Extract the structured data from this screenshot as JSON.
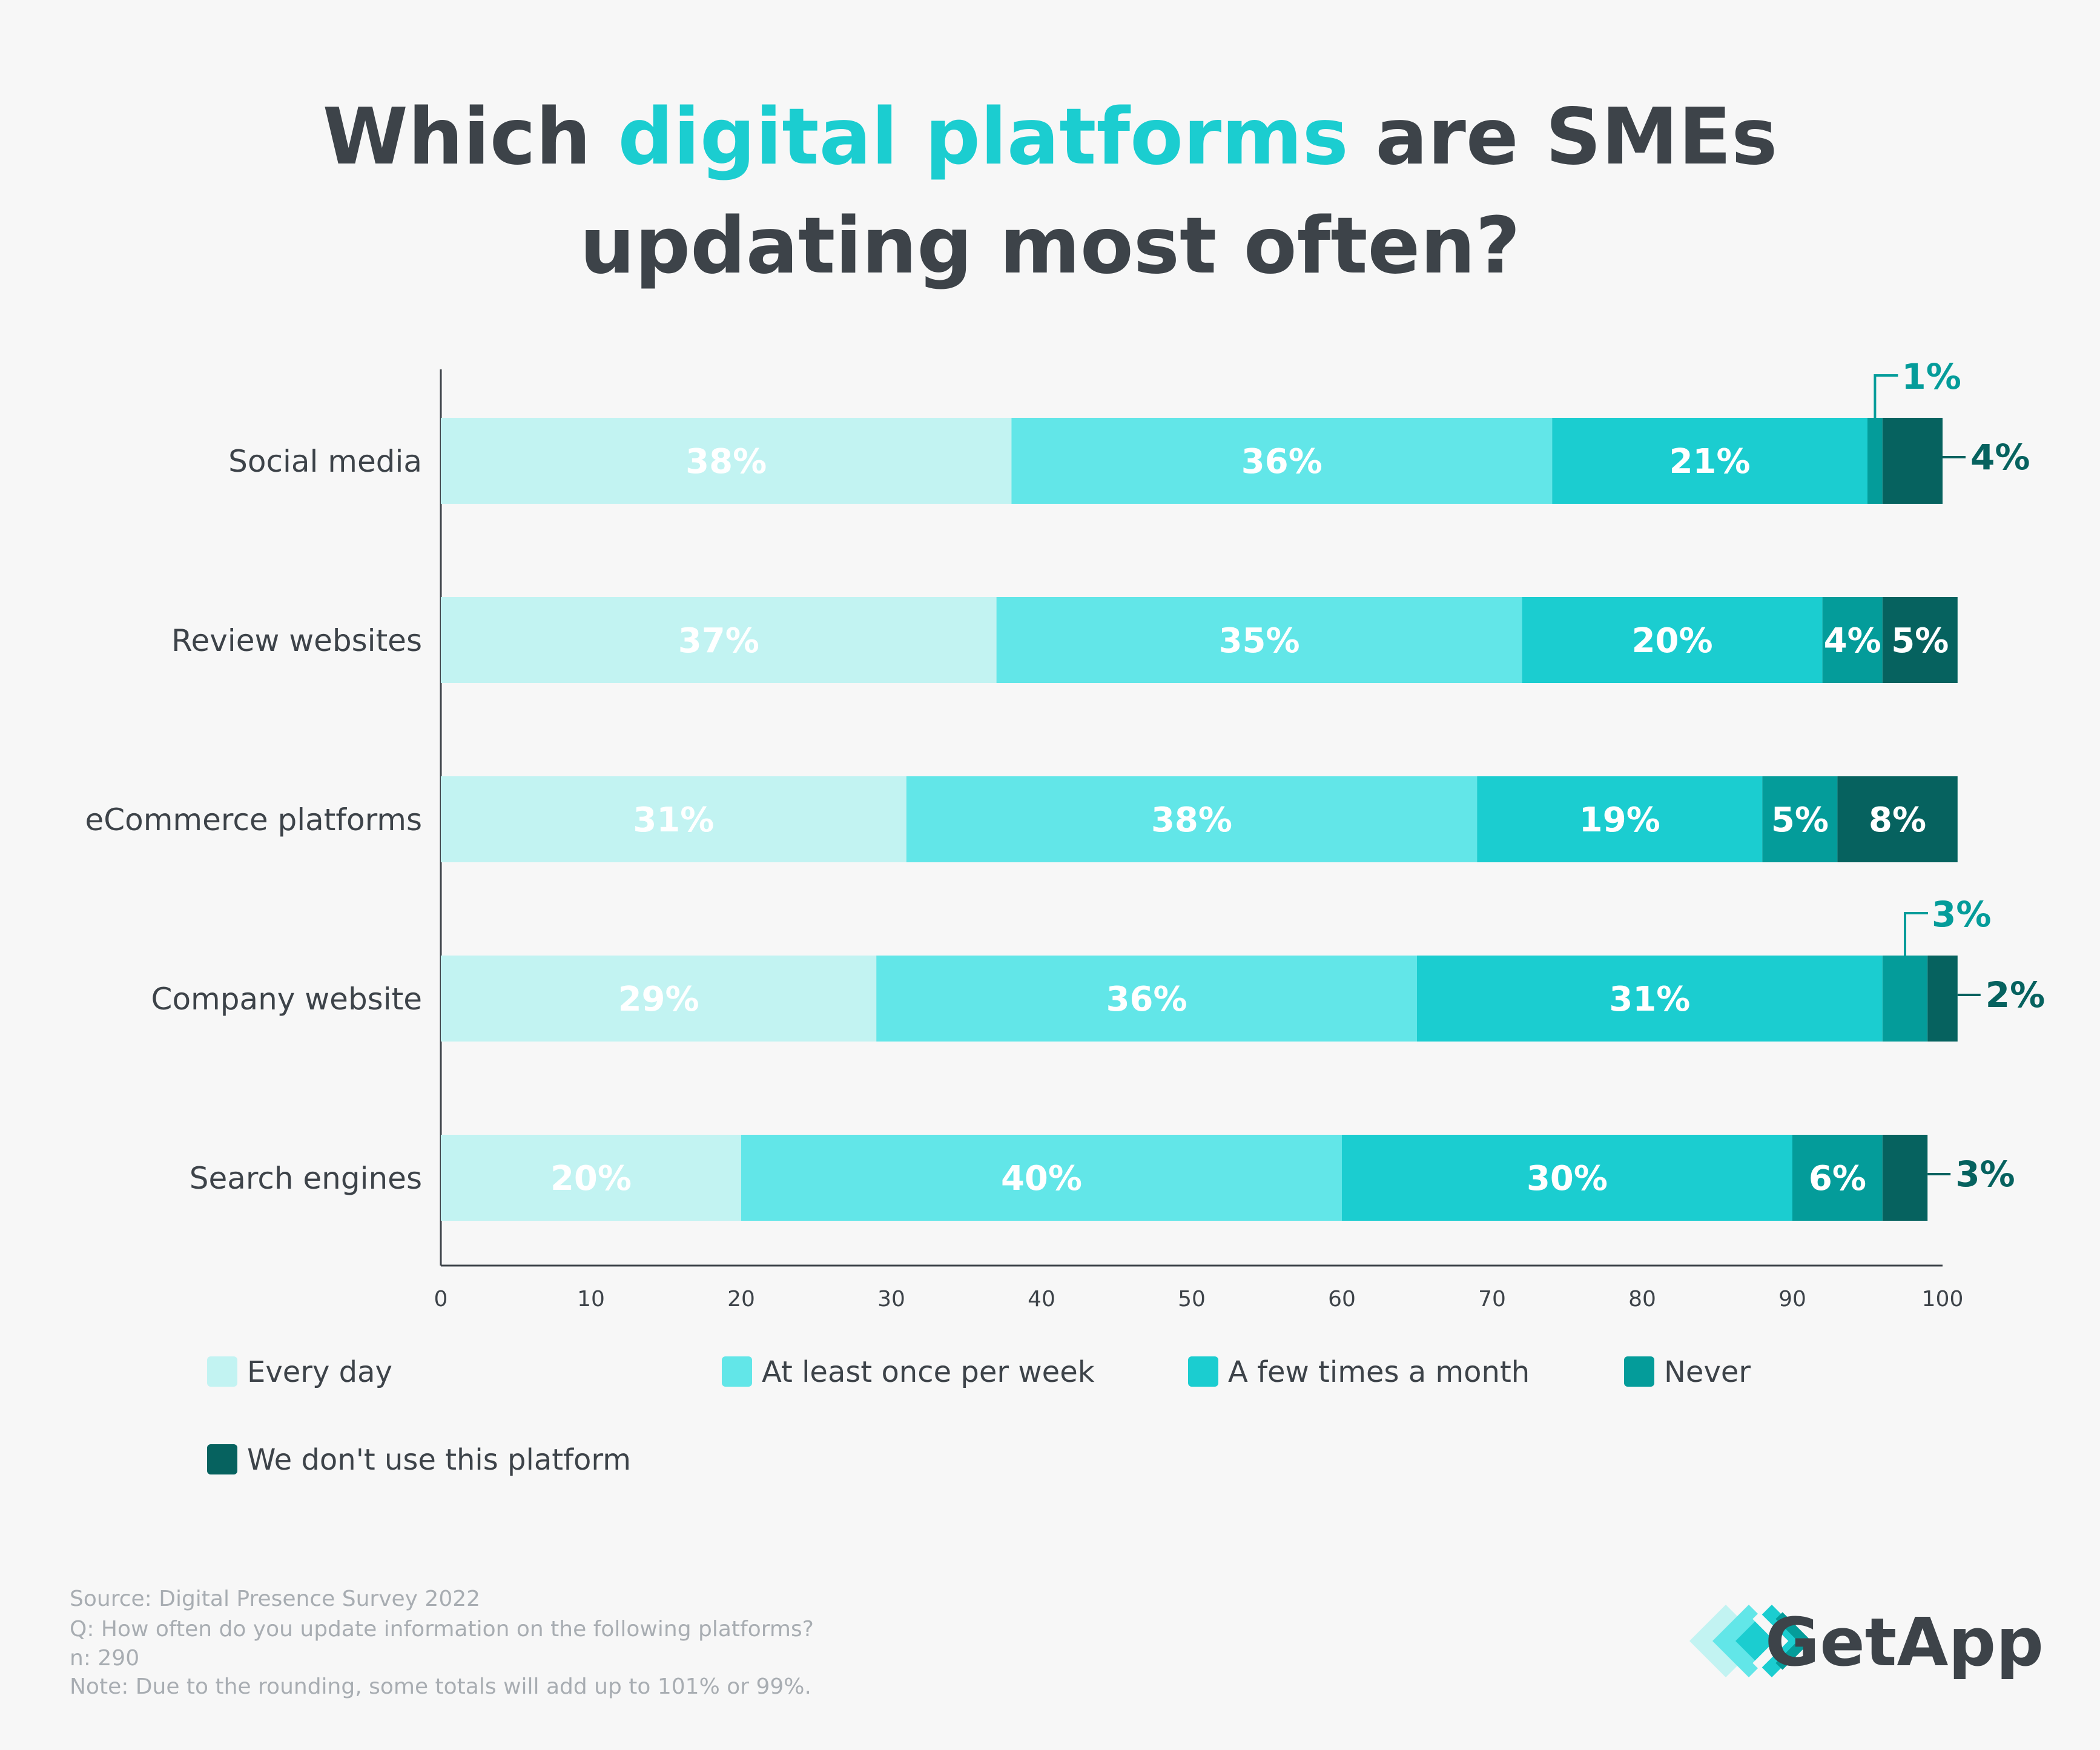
{
  "title": {
    "line1_prefix": "Which ",
    "line1_accent": "digital platforms",
    "line1_suffix": " are SMEs",
    "line2": "updating most often?"
  },
  "colors": {
    "text": "#3d4349",
    "accent": "#1bcdd0",
    "series": [
      "#c2f3f2",
      "#62e6e8",
      "#1bcdd0",
      "#049c9a",
      "#06625f"
    ]
  },
  "chart_data": {
    "type": "bar",
    "orientation": "horizontal",
    "stacked": true,
    "categories": [
      "Social media",
      "Review websites",
      "eCommerce platforms",
      "Company website",
      "Search engines"
    ],
    "series": [
      {
        "name": "Every day",
        "values": [
          38,
          37,
          31,
          29,
          20
        ]
      },
      {
        "name": "At least once per week",
        "values": [
          36,
          35,
          38,
          36,
          40
        ]
      },
      {
        "name": "A few times a month",
        "values": [
          21,
          20,
          19,
          31,
          30
        ]
      },
      {
        "name": "Never",
        "values": [
          1,
          4,
          5,
          3,
          6
        ]
      },
      {
        "name": "We don't use this platform",
        "values": [
          4,
          5,
          8,
          2,
          3
        ]
      }
    ],
    "data_labels": [
      [
        "38%",
        "36%",
        "21%",
        "1%",
        "4%"
      ],
      [
        "37%",
        "35%",
        "20%",
        "4%",
        "5%"
      ],
      [
        "31%",
        "38%",
        "19%",
        "5%",
        "8%"
      ],
      [
        "29%",
        "36%",
        "31%",
        "3%",
        "2%"
      ],
      [
        "20%",
        "40%",
        "30%",
        "6%",
        "3%"
      ]
    ],
    "xlim": [
      0,
      100
    ],
    "xticks": [
      0,
      10,
      20,
      30,
      40,
      50,
      60,
      70,
      80,
      90,
      100
    ],
    "xlabel": "",
    "ylabel": "",
    "grid": false,
    "legend_position": "bottom"
  },
  "footnotes": [
    "Source: Digital Presence Survey 2022",
    "Q: How often do you update information on the following platforms?",
    "n: 290",
    "Note: Due to the rounding, some totals will add up to 101% or 99%."
  ],
  "brand": {
    "name": "GetApp",
    "logo_icon": "getapp-chevron-logo-icon"
  }
}
